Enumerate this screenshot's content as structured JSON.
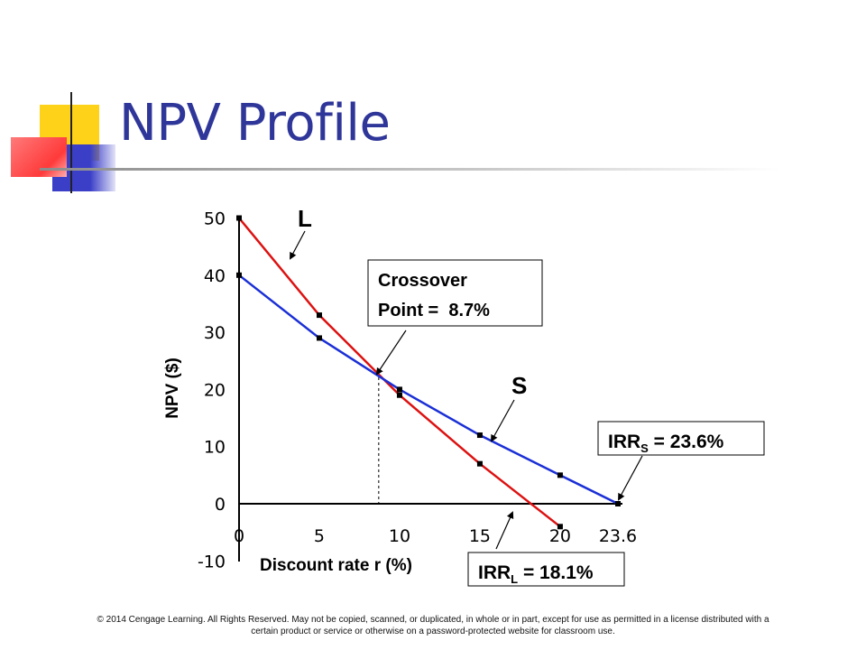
{
  "slide": {
    "title": "NPV Profile",
    "footer": "© 2014 Cengage Learning. All Rights Reserved. May not be copied, scanned, or duplicated, in whole or in part, except for use as permitted in a license distributed with a certain product or service or otherwise on a password-protected website for classroom use."
  },
  "colors": {
    "title": "#2f3699",
    "series_L": "#dd1111",
    "series_S": "#1a2fd6",
    "deco_yellow": "#ffd21a",
    "deco_blue": "#3b3fc8",
    "deco_red": "#ff4a4a"
  },
  "chart_data": {
    "type": "line",
    "title": "",
    "xlabel": "Discount rate r (%)",
    "ylabel": "NPV ($)",
    "x_ticks": [
      "0",
      "5",
      "10",
      "15",
      "20",
      "23.6"
    ],
    "y_ticks": [
      "50",
      "40",
      "30",
      "20",
      "10",
      "0",
      "-10"
    ],
    "xlim": [
      0,
      23.6
    ],
    "ylim": [
      -10,
      50
    ],
    "grid": false,
    "series": [
      {
        "name": "L",
        "x": [
          0,
          5,
          10,
          15,
          20
        ],
        "y": [
          50,
          33,
          19,
          7,
          -4
        ]
      },
      {
        "name": "S",
        "x": [
          0,
          5,
          10,
          15,
          20,
          23.6
        ],
        "y": [
          40,
          29,
          20,
          12,
          5,
          0
        ]
      }
    ],
    "annotations": {
      "label_L": "L",
      "label_S": "S",
      "crossover_line1": "Crossover",
      "crossover_line2": "Point =  8.7%",
      "crossover_x": 8.7,
      "irr_s_prefix": "IRR",
      "irr_s_sub": "S",
      "irr_s_value": " = 23.6%",
      "irr_s_x": 23.6,
      "irr_l_prefix": "IRR",
      "irr_l_sub": "L",
      "irr_l_value": " = 18.1%",
      "irr_l_x": 18.1
    }
  }
}
